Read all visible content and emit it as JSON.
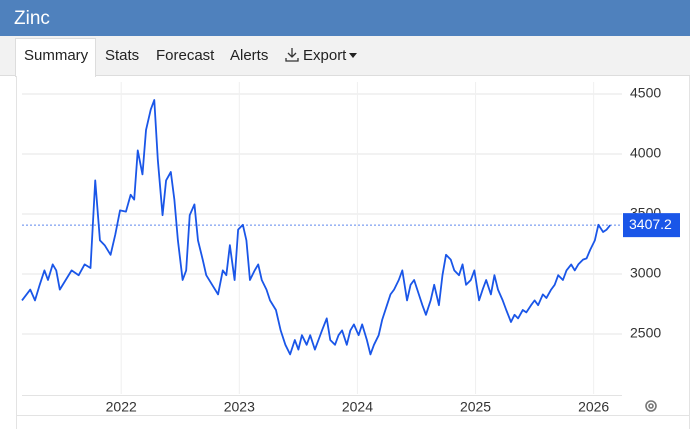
{
  "header": {
    "title": "Zinc"
  },
  "tabs": [
    "Summary",
    "Stats",
    "Forecast",
    "Alerts",
    "Export"
  ],
  "chart_data": {
    "type": "line",
    "x": [
      2021.16,
      2021.23,
      2021.27,
      2021.31,
      2021.35,
      2021.38,
      2021.42,
      2021.45,
      2021.48,
      2021.53,
      2021.58,
      2021.64,
      2021.69,
      2021.74,
      2021.78,
      2021.82,
      2021.86,
      2021.91,
      2021.95,
      2021.99,
      2022.04,
      2022.08,
      2022.11,
      2022.14,
      2022.18,
      2022.21,
      2022.25,
      2022.28,
      2022.31,
      2022.35,
      2022.38,
      2022.42,
      2022.45,
      2022.48,
      2022.52,
      2022.55,
      2022.58,
      2022.62,
      2022.65,
      2022.69,
      2022.72,
      2022.77,
      2022.82,
      2022.86,
      2022.89,
      2022.92,
      2022.96,
      2022.99,
      2023.03,
      2023.06,
      2023.09,
      2023.13,
      2023.16,
      2023.19,
      2023.23,
      2023.26,
      2023.31,
      2023.35,
      2023.39,
      2023.43,
      2023.47,
      2023.5,
      2023.53,
      2023.57,
      2023.6,
      2023.64,
      2023.67,
      2023.7,
      2023.74,
      2023.77,
      2023.81,
      2023.84,
      2023.87,
      2023.91,
      2023.94,
      2023.97,
      2024.01,
      2024.04,
      2024.08,
      2024.11,
      2024.14,
      2024.18,
      2024.21,
      2024.25,
      2024.28,
      2024.31,
      2024.35,
      2024.38,
      2024.42,
      2024.45,
      2024.48,
      2024.52,
      2024.55,
      2024.58,
      2024.62,
      2024.65,
      2024.69,
      2024.72,
      2024.75,
      2024.79,
      2024.82,
      2024.86,
      2024.89,
      2024.92,
      2024.96,
      2024.99,
      2025.03,
      2025.06,
      2025.09,
      2025.13,
      2025.16,
      2025.19,
      2025.23,
      2025.26,
      2025.3,
      2025.33,
      2025.36,
      2025.4,
      2025.43,
      2025.47,
      2025.5,
      2025.53,
      2025.57,
      2025.6,
      2025.64,
      2025.67,
      2025.7,
      2025.74,
      2025.77,
      2025.81,
      2025.84,
      2025.87,
      2025.91,
      2025.94,
      2025.97,
      2026.01,
      2026.04,
      2026.08,
      2026.11,
      2026.14
    ],
    "series": [
      {
        "color": "#1a56e8",
        "values": [
          2780,
          2870,
          2780,
          2910,
          3030,
          2950,
          3080,
          3030,
          2870,
          2950,
          3030,
          2990,
          3080,
          3050,
          3780,
          3280,
          3240,
          3160,
          3330,
          3530,
          3520,
          3660,
          3620,
          4030,
          3830,
          4200,
          4370,
          4450,
          3950,
          3490,
          3780,
          3850,
          3620,
          3280,
          2950,
          3030,
          3490,
          3580,
          3280,
          3120,
          2990,
          2910,
          2830,
          3030,
          2990,
          3240,
          2950,
          3370,
          3410,
          3280,
          2950,
          3030,
          3080,
          2950,
          2870,
          2780,
          2700,
          2530,
          2410,
          2330,
          2450,
          2370,
          2490,
          2410,
          2490,
          2370,
          2450,
          2530,
          2630,
          2450,
          2410,
          2490,
          2530,
          2410,
          2530,
          2580,
          2490,
          2580,
          2450,
          2330,
          2410,
          2490,
          2620,
          2740,
          2830,
          2870,
          2950,
          3030,
          2780,
          2910,
          2950,
          2830,
          2740,
          2660,
          2780,
          2910,
          2740,
          2990,
          3160,
          3120,
          3030,
          2990,
          3080,
          2910,
          2950,
          3030,
          2780,
          2870,
          2950,
          2830,
          2990,
          2870,
          2780,
          2700,
          2600,
          2660,
          2630,
          2700,
          2680,
          2740,
          2780,
          2740,
          2830,
          2800,
          2870,
          2910,
          2990,
          2950,
          3030,
          3080,
          3030,
          3080,
          3120,
          3130,
          3200,
          3280,
          3410,
          3350,
          3370,
          3407.2
        ]
      }
    ],
    "xlim": [
      2021.16,
      2026.24
    ],
    "xticks": [
      2022,
      2023,
      2024,
      2025,
      2026
    ],
    "ylim": [
      2000,
      4600
    ],
    "yticks": [
      2500,
      3000,
      3500,
      4000,
      4500
    ],
    "grid": true
  }
}
